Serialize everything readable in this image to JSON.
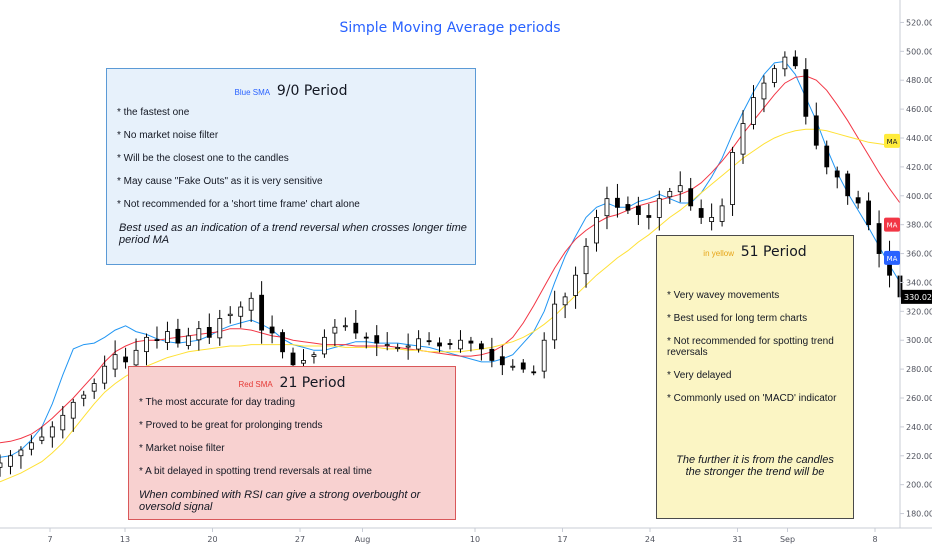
{
  "chart_data": {
    "type": "candlestick",
    "title": "Simple Moving Average periods",
    "y_ticks": [
      "520.00",
      "500.00",
      "480.00",
      "460.00",
      "440.00",
      "420.00",
      "400.00",
      "380.00",
      "360.00",
      "340.00",
      "320.00",
      "300.00",
      "280.00",
      "260.00",
      "240.00",
      "220.00",
      "200.00",
      "180.00"
    ],
    "ylim": [
      170,
      530
    ],
    "x_ticks": [
      {
        "label": "7",
        "day": 4
      },
      {
        "label": "13",
        "day": 10
      },
      {
        "label": "20",
        "day": 17
      },
      {
        "label": "27",
        "day": 24
      },
      {
        "label": "Aug",
        "day": 29
      },
      {
        "label": "10",
        "day": 38
      },
      {
        "label": "17",
        "day": 45
      },
      {
        "label": "24",
        "day": 52
      },
      {
        "label": "31",
        "day": 59
      },
      {
        "label": "Sep",
        "day": 63
      },
      {
        "label": "8",
        "day": 70
      }
    ],
    "x_start_day": 0,
    "x_end_day": 72,
    "price_label": "330.02",
    "price_label_color": "#000000",
    "legend_badges": [
      {
        "text": "MA",
        "value": 438,
        "bg": "#ffeb3b",
        "fg": "#131722"
      },
      {
        "text": "MA",
        "value": 380,
        "bg": "#f23645",
        "fg": "#ffffff"
      },
      {
        "text": "MA",
        "value": 357,
        "bg": "#2962ff",
        "fg": "#ffffff"
      }
    ],
    "closes": [
      215,
      220,
      224,
      229,
      233,
      240,
      248,
      257,
      262,
      270,
      282,
      290,
      285,
      293,
      302,
      300,
      306,
      298,
      303,
      308,
      302,
      315,
      318,
      323,
      329,
      307,
      305,
      292,
      283,
      286,
      290,
      302,
      309,
      310,
      305,
      302,
      298,
      297,
      295,
      296,
      301,
      299,
      296,
      297,
      300,
      298,
      294,
      286,
      283,
      282,
      280,
      278,
      300,
      325,
      330,
      345,
      365,
      385,
      398,
      392,
      390,
      387,
      385,
      398,
      403,
      407,
      393,
      385,
      385,
      393,
      430,
      450,
      468,
      478,
      488,
      496,
      490,
      455,
      435,
      420,
      413,
      400,
      395,
      380,
      360,
      345,
      330
    ],
    "series": [
      {
        "name": "Blue SMA",
        "color": "#2196f3",
        "values": [
          219,
          220,
          224,
          231,
          240,
          256,
          276,
          294,
          297,
          298,
          302,
          307,
          310,
          306,
          304,
          301,
          299,
          298,
          299,
          300,
          303,
          307,
          310,
          312,
          314,
          311,
          307,
          301,
          297,
          295,
          293,
          293,
          295,
          297,
          299,
          299,
          298,
          298,
          298,
          297,
          296,
          295,
          293,
          291,
          289,
          287,
          285,
          285,
          287,
          290,
          298,
          306,
          320,
          340,
          358,
          372,
          385,
          392,
          395,
          392,
          392,
          396,
          398,
          401,
          398,
          395,
          395,
          402,
          413,
          426,
          443,
          458,
          472,
          484,
          492,
          493,
          484,
          468,
          452,
          433,
          416,
          402,
          390,
          378,
          365,
          352,
          340
        ]
      },
      {
        "name": "Red SMA",
        "color": "#f23645",
        "values": [
          229,
          230,
          232,
          235,
          240,
          246,
          253,
          260,
          268,
          276,
          285,
          292,
          296,
          299,
          300,
          300,
          301,
          302,
          303,
          304,
          305,
          306,
          308,
          308,
          307,
          305,
          303,
          302,
          300,
          299,
          298,
          297,
          297,
          297,
          296,
          296,
          296,
          296,
          295,
          294,
          293,
          292,
          291,
          290,
          289,
          289,
          290,
          292,
          296,
          302,
          312,
          324,
          337,
          350,
          361,
          370,
          376,
          381,
          385,
          387,
          390,
          393,
          395,
          397,
          399,
          401,
          404,
          409,
          416,
          424,
          433,
          443,
          452,
          461,
          470,
          478,
          482,
          483,
          480,
          473,
          463,
          452,
          440,
          428,
          416,
          405,
          395
        ]
      },
      {
        "name": "Yellow SMA",
        "color": "#ffe135",
        "values": [
          202,
          205,
          208,
          212,
          216,
          222,
          229,
          238,
          247,
          256,
          264,
          270,
          275,
          279,
          282,
          285,
          288,
          290,
          292,
          293,
          294,
          295,
          296,
          296,
          297,
          297,
          297,
          297,
          297,
          296,
          296,
          296,
          296,
          295,
          295,
          295,
          295,
          294,
          294,
          293,
          293,
          292,
          292,
          292,
          292,
          293,
          294,
          295,
          297,
          299,
          302,
          306,
          311,
          317,
          324,
          331,
          338,
          345,
          351,
          357,
          362,
          368,
          373,
          379,
          385,
          390,
          396,
          402,
          408,
          414,
          420,
          426,
          431,
          436,
          440,
          443,
          445,
          446,
          446,
          445,
          443,
          441,
          439,
          437,
          436,
          435,
          434
        ]
      }
    ]
  },
  "notes": {
    "blue": {
      "tag": "Blue SMA",
      "title": "9/0 Period",
      "bullets": [
        "* the fastest one",
        "* No market noise filter",
        "* Will be the closest one to the candles",
        "* May cause \"Fake Outs\" as it is very sensitive",
        "* Not recommended for a 'short time frame' chart alone"
      ],
      "footer": "Best used as an indication of a trend reversal when crosses longer time period MA"
    },
    "red": {
      "tag": "Red SMA",
      "title": "21 Period",
      "bullets": [
        "* The most accurate for day trading",
        "* Proved to be great for prolonging trends",
        "* Market noise filter",
        "* A bit delayed in spotting trend reversals at real time"
      ],
      "footer": "When combined with RSI can give a strong overbought or oversold signal"
    },
    "yellow": {
      "tag": "in yellow",
      "title": "51 Period",
      "bullets": [
        "* Very wavey movements",
        "* Best used for long term charts",
        "* Not recommended for spotting trend reversals",
        "* Very delayed",
        "* Commonly used on 'MACD' indicator"
      ],
      "footer_line1": "The further it is from the candles",
      "footer_line2": "the stronger the trend will be"
    }
  }
}
